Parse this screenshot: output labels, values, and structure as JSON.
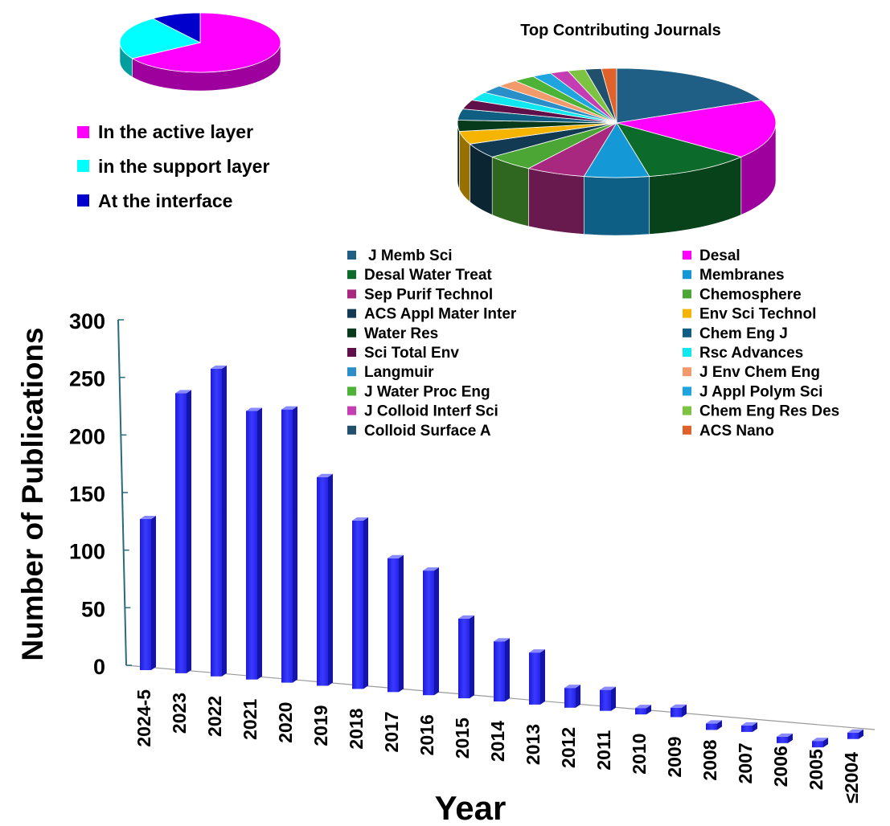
{
  "chart_data": [
    {
      "type": "pie",
      "title": "",
      "labels": [
        "In the active layer",
        "in the support layer",
        "At the interface"
      ],
      "values": [
        66,
        24,
        10
      ],
      "colors": [
        "#ff00ff",
        "#00ffff",
        "#0000cc"
      ],
      "legend_position": "below"
    },
    {
      "type": "pie",
      "title": "Top Contributing Journals",
      "labels": [
        "J Memb Sci",
        "Desal",
        "Desal Water Treat",
        "Membranes",
        "Sep Purif Technol",
        "Chemosphere",
        "ACS Appl Mater Inter",
        "Env Sci Technol",
        "Water Res",
        "Chem Eng J",
        "Sci Total Env",
        "Rsc Advances",
        "Langmuir",
        "J Env Chem Eng",
        "J Water Proc Eng",
        "J Appl Polym Sci",
        "J Colloid Interf Sci",
        "Chem Eng Res Des",
        "Colloid Surface A",
        "ACS Nano"
      ],
      "values": [
        16.5,
        16,
        10,
        6,
        5.5,
        4.5,
        4,
        3.5,
        3,
        3,
        2.5,
        2.3,
        2.2,
        2,
        2,
        1.8,
        1.7,
        1.6,
        1.5,
        1.4
      ],
      "colors": [
        "#1f5f86",
        "#ff00ff",
        "#0c6a2a",
        "#1599d6",
        "#a7287e",
        "#4ca636",
        "#123b53",
        "#f4b400",
        "#063a1b",
        "#0f5f82",
        "#5f0f4a",
        "#10e8f0",
        "#2a8fc8",
        "#f39a6c",
        "#4cb337",
        "#1ea5df",
        "#c43db2",
        "#7dc342",
        "#21506d",
        "#e0622a"
      ],
      "legend_position": "bottom"
    },
    {
      "type": "bar",
      "title": "",
      "xlabel": "Year",
      "ylabel": "Number of Publications",
      "categories": [
        "2024-5",
        "2023",
        "2022",
        "2021",
        "2020",
        "2019",
        "2018",
        "2017",
        "2016",
        "2015",
        "2014",
        "2013",
        "2012",
        "2011",
        "2010",
        "2009",
        "2008",
        "2007",
        "2006",
        "2005",
        "≤2004"
      ],
      "values": [
        127,
        239,
        263,
        229,
        233,
        177,
        142,
        112,
        104,
        65,
        48,
        41,
        13,
        14,
        1,
        4,
        -7,
        -6,
        -13,
        -14,
        -4
      ],
      "ylim": [
        0,
        300
      ],
      "yticks": [
        0,
        50,
        100,
        150,
        200,
        250,
        300
      ],
      "bar_color": "#2323ee",
      "grid": false
    }
  ]
}
